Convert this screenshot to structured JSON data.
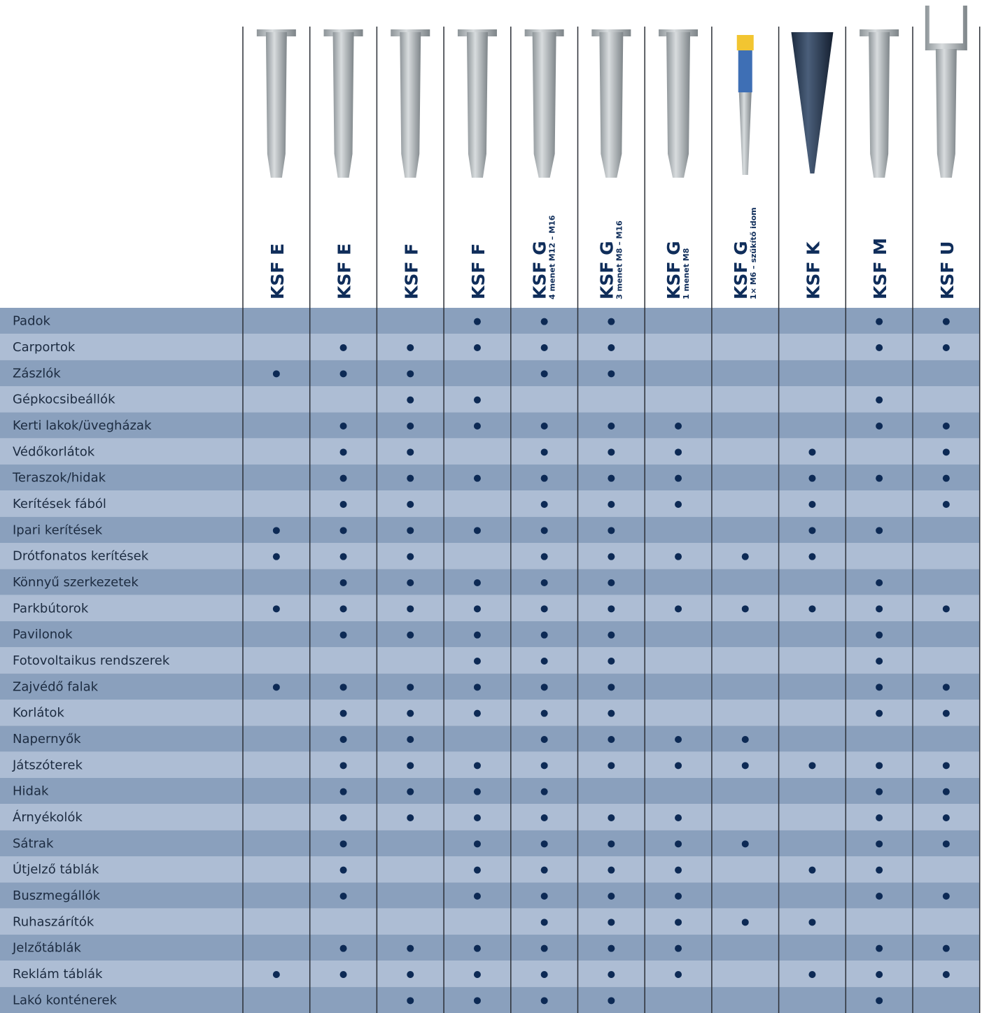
{
  "table": {
    "columns": [
      {
        "name": "KSF E"
      },
      {
        "name": "KSF E"
      },
      {
        "name": "KSF F"
      },
      {
        "name": "KSF F"
      },
      {
        "name": "KSF G",
        "subtitle": "4 menet M12 – M16"
      },
      {
        "name": "KSF G",
        "subtitle": "3 menet M8 – M16"
      },
      {
        "name": "KSF G",
        "subtitle": "1 menet M8"
      },
      {
        "name": "KSF G",
        "subtitle": "1× M6 – szűkítő idom"
      },
      {
        "name": "KSF K"
      },
      {
        "name": "KSF M"
      },
      {
        "name": "KSF U"
      }
    ],
    "rows": [
      {
        "label": "Padok",
        "marks": [
          false,
          false,
          false,
          true,
          true,
          true,
          false,
          false,
          false,
          true,
          true
        ]
      },
      {
        "label": "Carportok",
        "marks": [
          false,
          true,
          true,
          true,
          true,
          true,
          false,
          false,
          false,
          true,
          true
        ]
      },
      {
        "label": "Zászlók",
        "marks": [
          true,
          true,
          true,
          false,
          true,
          true,
          false,
          false,
          false,
          false,
          false
        ]
      },
      {
        "label": "Gépkocsibeállók",
        "marks": [
          false,
          false,
          true,
          true,
          false,
          false,
          false,
          false,
          false,
          true,
          false
        ]
      },
      {
        "label": "Kerti lakok/üvegházak",
        "marks": [
          false,
          true,
          true,
          true,
          true,
          true,
          true,
          false,
          false,
          true,
          true
        ]
      },
      {
        "label": "Védőkorlátok",
        "marks": [
          false,
          true,
          true,
          false,
          true,
          true,
          true,
          false,
          true,
          false,
          true
        ]
      },
      {
        "label": "Teraszok/hidak",
        "marks": [
          false,
          true,
          true,
          true,
          true,
          true,
          true,
          false,
          true,
          true,
          true
        ]
      },
      {
        "label": "Kerítések fából",
        "marks": [
          false,
          true,
          true,
          false,
          true,
          true,
          true,
          false,
          true,
          false,
          true
        ]
      },
      {
        "label": "Ipari kerítések",
        "marks": [
          true,
          true,
          true,
          true,
          true,
          true,
          false,
          false,
          true,
          true,
          false
        ]
      },
      {
        "label": "Drótfonatos kerítések",
        "marks": [
          true,
          true,
          true,
          false,
          true,
          true,
          true,
          true,
          true,
          false,
          false
        ]
      },
      {
        "label": "Könnyű szerkezetek",
        "marks": [
          false,
          true,
          true,
          true,
          true,
          true,
          false,
          false,
          false,
          true,
          false
        ]
      },
      {
        "label": "Parkbútorok",
        "marks": [
          true,
          true,
          true,
          true,
          true,
          true,
          true,
          true,
          true,
          true,
          true
        ]
      },
      {
        "label": "Pavilonok",
        "marks": [
          false,
          true,
          true,
          true,
          true,
          true,
          false,
          false,
          false,
          true,
          false
        ]
      },
      {
        "label": "Fotovoltaikus rendszerek",
        "marks": [
          false,
          false,
          false,
          true,
          true,
          true,
          false,
          false,
          false,
          true,
          false
        ]
      },
      {
        "label": "Zajvédő falak",
        "marks": [
          true,
          true,
          true,
          true,
          true,
          true,
          false,
          false,
          false,
          true,
          true
        ]
      },
      {
        "label": "Korlátok",
        "marks": [
          false,
          true,
          true,
          true,
          true,
          true,
          false,
          false,
          false,
          true,
          true
        ]
      },
      {
        "label": "Napernyők",
        "marks": [
          false,
          true,
          true,
          false,
          true,
          true,
          true,
          true,
          false,
          false,
          false
        ]
      },
      {
        "label": "Játszóterek",
        "marks": [
          false,
          true,
          true,
          true,
          true,
          true,
          true,
          true,
          true,
          true,
          true
        ]
      },
      {
        "label": "Hidak",
        "marks": [
          false,
          true,
          true,
          true,
          true,
          false,
          false,
          false,
          false,
          true,
          true
        ]
      },
      {
        "label": "Árnyékolók",
        "marks": [
          false,
          true,
          true,
          true,
          true,
          true,
          true,
          false,
          false,
          true,
          true
        ]
      },
      {
        "label": "Sátrak",
        "marks": [
          false,
          true,
          false,
          true,
          true,
          true,
          true,
          true,
          false,
          true,
          true
        ]
      },
      {
        "label": "Útjelző táblák",
        "marks": [
          false,
          true,
          false,
          true,
          true,
          true,
          true,
          false,
          true,
          true,
          false
        ]
      },
      {
        "label": "Buszmegállók",
        "marks": [
          false,
          true,
          false,
          true,
          true,
          true,
          true,
          false,
          false,
          true,
          true
        ]
      },
      {
        "label": "Ruhaszárítók",
        "marks": [
          false,
          false,
          false,
          false,
          true,
          true,
          true,
          true,
          true,
          false,
          false
        ]
      },
      {
        "label": "Jelzőtáblák",
        "marks": [
          false,
          true,
          true,
          true,
          true,
          true,
          true,
          false,
          false,
          true,
          true
        ]
      },
      {
        "label": "Reklám táblák",
        "marks": [
          true,
          true,
          true,
          true,
          true,
          true,
          true,
          false,
          true,
          true,
          true
        ]
      },
      {
        "label": "Lakó konténerek",
        "marks": [
          false,
          false,
          true,
          true,
          true,
          true,
          false,
          false,
          false,
          true,
          false
        ]
      }
    ]
  }
}
